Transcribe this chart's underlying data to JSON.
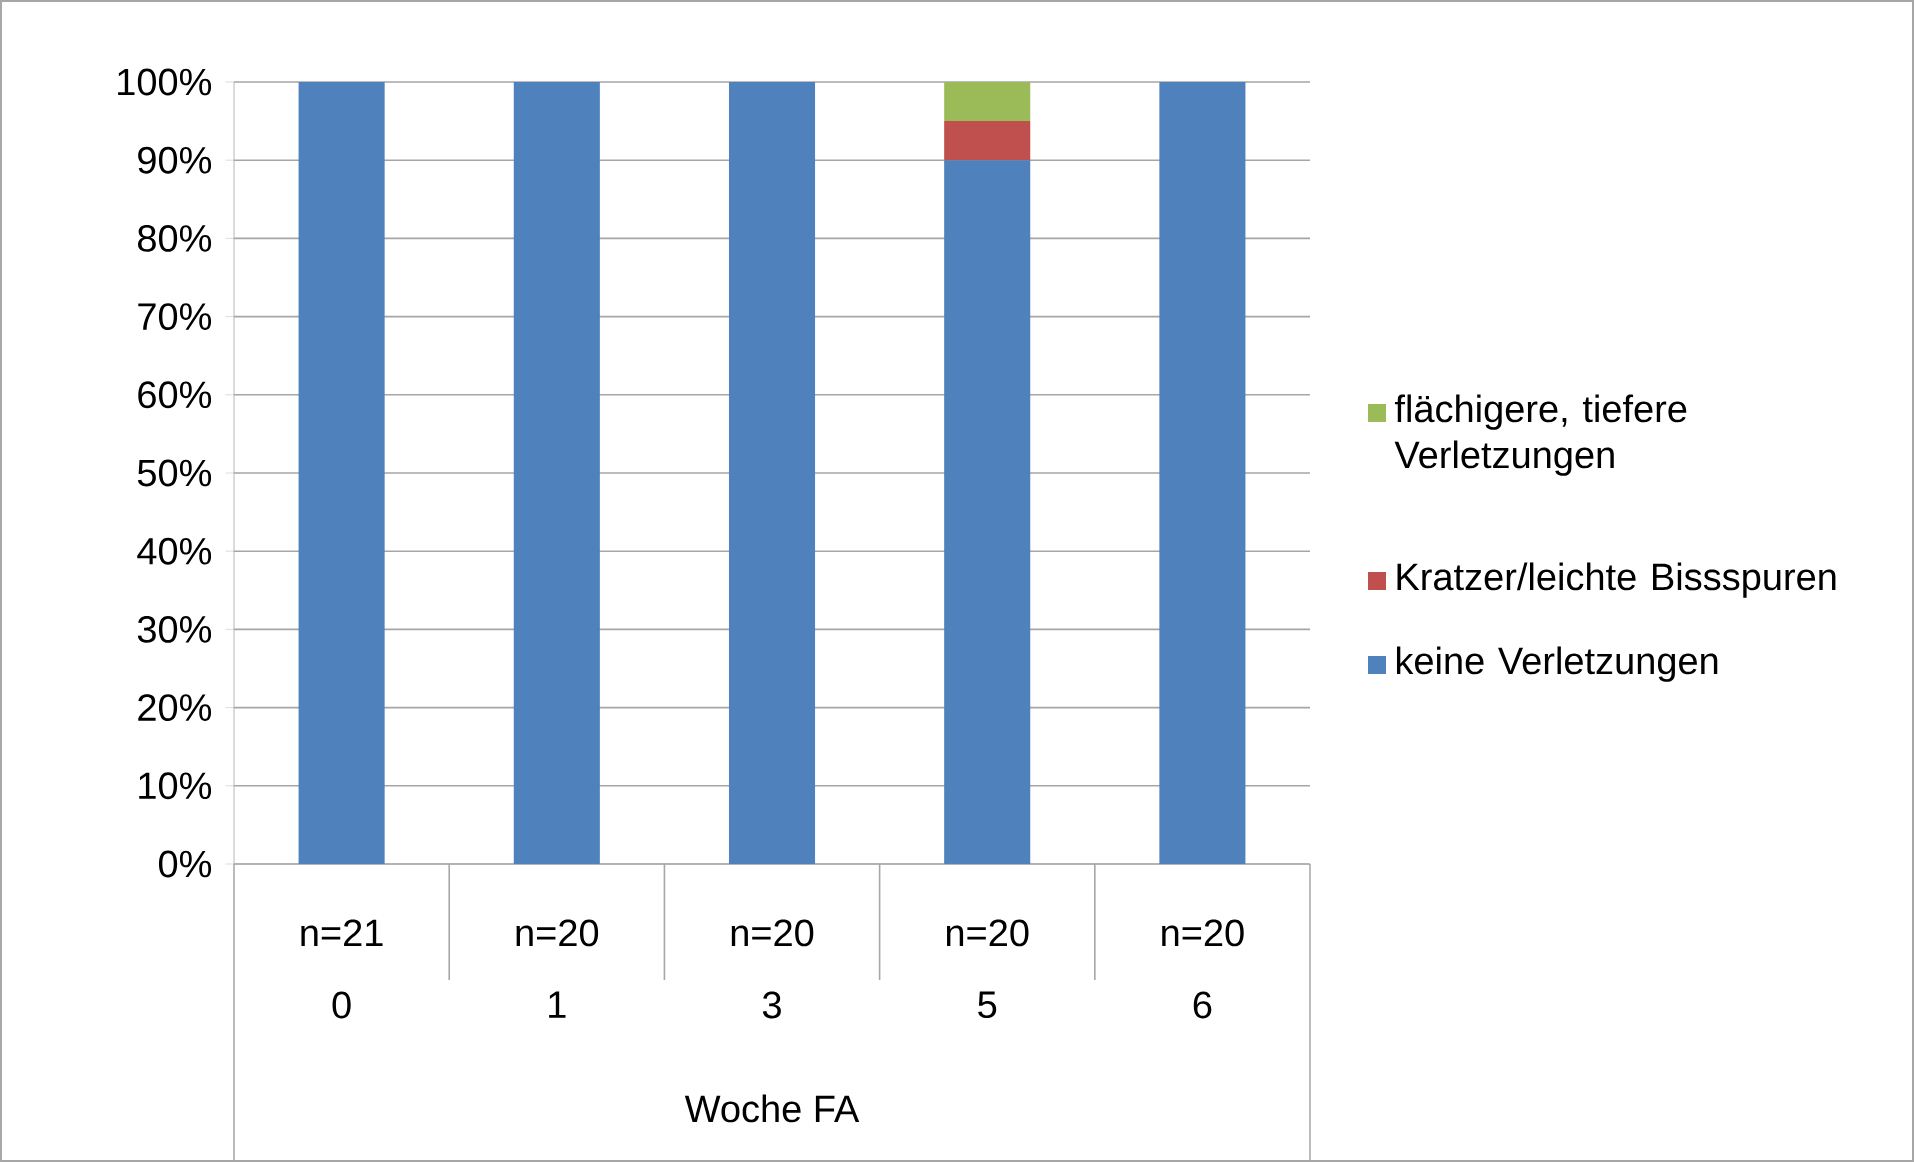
{
  "chart_data": {
    "type": "bar",
    "stacked": true,
    "xlabel": "Woche FA",
    "categories": [
      "0",
      "1",
      "3",
      "5",
      "6"
    ],
    "series": [
      {
        "name": "keine Verletzungen",
        "color": "#4f81bd",
        "values": [
          100,
          100,
          100,
          90,
          100
        ]
      },
      {
        "name": "Kratzer/leichte Bissspuren",
        "color": "#c0504d",
        "values": [
          0,
          0,
          0,
          5,
          0
        ]
      },
      {
        "name": "flächigere, tiefere Verletzungen",
        "color": "#9bbb59",
        "values": [
          0,
          0,
          0,
          5,
          0
        ]
      }
    ],
    "ylim": [
      0,
      100
    ],
    "yticks": [
      {
        "value": 0,
        "label": "0%"
      },
      {
        "value": 10,
        "label": "10%"
      },
      {
        "value": 20,
        "label": "20%"
      },
      {
        "value": 30,
        "label": "30%"
      },
      {
        "value": 40,
        "label": "40%"
      },
      {
        "value": 50,
        "label": "50%"
      },
      {
        "value": 60,
        "label": "60%"
      },
      {
        "value": 70,
        "label": "70%"
      },
      {
        "value": 80,
        "label": "80%"
      },
      {
        "value": 90,
        "label": "90%"
      },
      {
        "value": 100,
        "label": "100%"
      }
    ],
    "annotations": [
      "n=21",
      "n=20",
      "n=20",
      "n=20",
      "n=20"
    ],
    "grid": "y",
    "legend": "right"
  }
}
